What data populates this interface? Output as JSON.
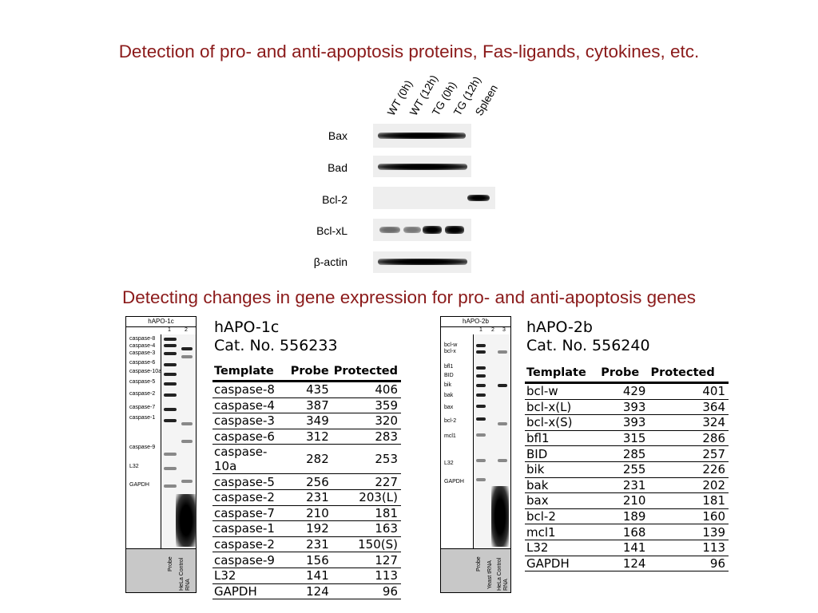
{
  "titles": {
    "protein": "Detection of pro- and anti-apoptosis proteins, Fas-ligands, cytokines, etc.",
    "gene": "Detecting changes in gene expression for pro- and anti-apoptosis genes"
  },
  "western": {
    "lanes": [
      "WT (0h)",
      "WT (12h)",
      "TG (0h)",
      "TG (12h)",
      "Spleen"
    ],
    "rows": [
      {
        "label": "Bax"
      },
      {
        "label": "Bad"
      },
      {
        "label": "Bcl-2"
      },
      {
        "label": "Bcl-xL"
      },
      {
        "label": "β-actin"
      }
    ]
  },
  "gel1": {
    "title": "hAPO-1c",
    "lane_numbers": [
      "1",
      "2"
    ],
    "gene_labels": [
      "caspase-8",
      "caspase-4",
      "caspase-3",
      "caspase-6",
      "caspase-10a",
      "caspase-5",
      "caspase-2",
      "caspase-7",
      "caspase-1",
      "caspase-9",
      "L32",
      "GAPDH"
    ],
    "footer": [
      "Probe",
      "HeLa Control RNA"
    ]
  },
  "gel2": {
    "title": "hAPO-2b",
    "lane_numbers": [
      "1",
      "2",
      "3"
    ],
    "gene_labels": [
      "bcl-w",
      "bcl-x",
      "bfl1",
      "BID",
      "bik",
      "bak",
      "bax",
      "bcl-2",
      "mcl1",
      "L32",
      "GAPDH"
    ],
    "footer": [
      "Probe",
      "Yeast tRNA",
      "HeLa Control RNA"
    ]
  },
  "table1": {
    "name": "hAPO-1c",
    "cat": "Cat. No. 556233",
    "headers": [
      "Template",
      "Probe",
      "Protected"
    ],
    "rows": [
      [
        "caspase-8",
        "435",
        "406"
      ],
      [
        "caspase-4",
        "387",
        "359"
      ],
      [
        "caspase-3",
        "349",
        "320"
      ],
      [
        "caspase-6",
        "312",
        "283"
      ],
      [
        "caspase-10a",
        "282",
        "253"
      ],
      [
        "caspase-5",
        "256",
        "227"
      ],
      [
        "caspase-2",
        "231",
        "203(L)"
      ],
      [
        "caspase-7",
        "210",
        "181"
      ],
      [
        "caspase-1",
        "192",
        "163"
      ],
      [
        "caspase-2",
        "231",
        "150(S)"
      ],
      [
        "caspase-9",
        "156",
        "127"
      ],
      [
        "L32",
        "141",
        "113"
      ],
      [
        "GAPDH",
        "124",
        "96"
      ]
    ]
  },
  "table2": {
    "name": "hAPO-2b",
    "cat": "Cat. No. 556240",
    "headers": [
      "Template",
      "Probe",
      "Protected"
    ],
    "rows": [
      [
        "bcl-w",
        "429",
        "401"
      ],
      [
        "bcl-x(L)",
        "393",
        "364"
      ],
      [
        "bcl-x(S)",
        "393",
        "324"
      ],
      [
        "bfl1",
        "315",
        "286"
      ],
      [
        "BID",
        "285",
        "257"
      ],
      [
        "bik",
        "255",
        "226"
      ],
      [
        "bak",
        "231",
        "202"
      ],
      [
        "bax",
        "210",
        "181"
      ],
      [
        "bcl-2",
        "189",
        "160"
      ],
      [
        "mcl1",
        "168",
        "139"
      ],
      [
        "L32",
        "141",
        "113"
      ],
      [
        "GAPDH",
        "124",
        "96"
      ]
    ]
  }
}
